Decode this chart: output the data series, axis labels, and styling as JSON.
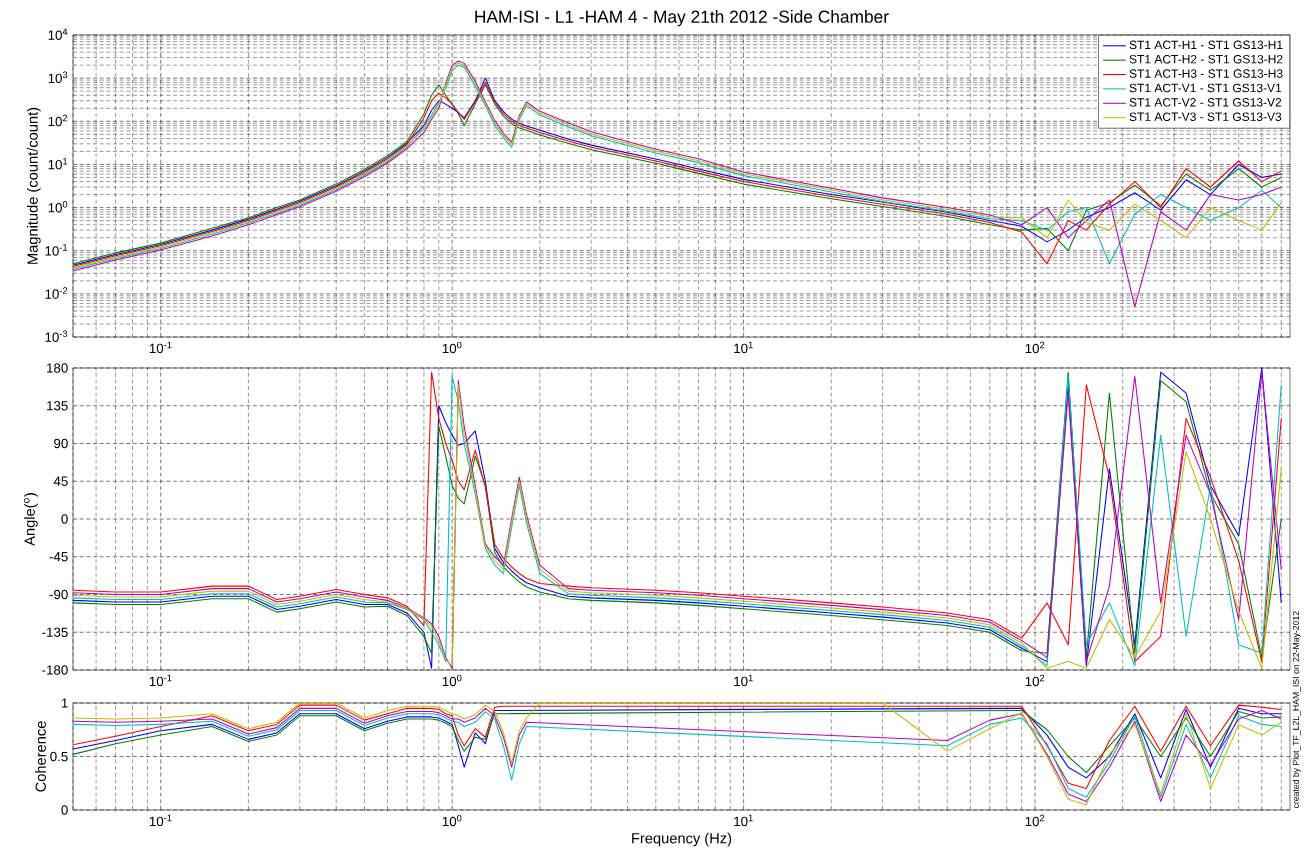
{
  "chart_data": [
    {
      "type": "line",
      "title": "HAM-ISI - L1 -HAM 4 - May 21th 2012 -Side Chamber",
      "ylabel": "Magnitude (count/count)",
      "log": "xy",
      "grid": true,
      "legend": "top right",
      "xlim": [
        0.05,
        750
      ],
      "xticks": [
        {
          "value": 0.1,
          "label": "10$^{-1}$"
        },
        {
          "value": 1,
          "label": "10$^{0}$"
        },
        {
          "value": 10,
          "label": "10$^{1}$"
        },
        {
          "value": 100,
          "label": "10$^{2}$"
        }
      ],
      "ylim": [
        0.001,
        10000
      ],
      "yticks": [
        {
          "value": 0.001,
          "label": "10$^{-3}$"
        },
        {
          "value": 0.01,
          "label": "10$^{-2}$"
        },
        {
          "value": 0.1,
          "label": "10$^{-1}$"
        },
        {
          "value": 1,
          "label": "10$^{0}$"
        },
        {
          "value": 10,
          "label": "10$^{1}$"
        },
        {
          "value": 100,
          "label": "10$^{2}$"
        },
        {
          "value": 1000,
          "label": "10$^{3}$"
        },
        {
          "value": 10000,
          "label": "10$^{4}$"
        }
      ],
      "x": [
        0.05,
        0.07,
        0.1,
        0.15,
        0.2,
        0.25,
        0.3,
        0.4,
        0.5,
        0.6,
        0.7,
        0.8,
        0.85,
        0.9,
        0.95,
        1.0,
        1.05,
        1.1,
        1.2,
        1.3,
        1.4,
        1.5,
        1.6,
        1.7,
        1.8,
        2,
        2.5,
        3,
        5,
        7,
        10,
        20,
        30,
        50,
        70,
        90,
        110,
        130,
        150,
        180,
        220,
        270,
        330,
        400,
        500,
        600,
        700
      ],
      "series": [
        {
          "name": "ST1 ACT-H1 - ST1 GS13-H1",
          "color": "#0000ff",
          "values": [
            0.046,
            0.082,
            0.14,
            0.3,
            0.54,
            0.92,
            1.4,
            3.2,
            7,
            14.6,
            31,
            80,
            180,
            300,
            250,
            200,
            160,
            120,
            300,
            1000,
            300,
            168,
            112,
            90,
            78,
            62,
            39,
            28,
            13.4,
            7.8,
            4.5,
            2,
            1.35,
            0.78,
            0.5,
            0.37,
            0.16,
            0.3,
            0.6,
            1,
            2.2,
            0.87,
            4.4,
            2,
            10,
            5,
            6
          ]
        },
        {
          "name": "ST1 ACT-H2 - ST1 GS13-H2",
          "color": "#008000",
          "values": [
            0.05,
            0.089,
            0.15,
            0.33,
            0.58,
            1,
            1.5,
            3.5,
            7.6,
            16,
            34,
            150,
            400,
            700,
            400,
            250,
            150,
            80,
            250,
            700,
            250,
            132,
            88,
            70,
            62,
            48,
            31,
            22,
            10.6,
            6.2,
            3.5,
            1.6,
            1.06,
            0.62,
            0.4,
            0.3,
            0.33,
            0.1,
            0.87,
            1.3,
            3.3,
            1.1,
            6,
            2.5,
            8,
            3,
            5
          ]
        },
        {
          "name": "ST1 ACT-H3 - ST1 GS13-H3",
          "color": "#ff0000",
          "values": [
            0.043,
            0.076,
            0.13,
            0.28,
            0.5,
            0.85,
            1.3,
            3,
            6.5,
            13.5,
            29,
            120,
            300,
            450,
            350,
            250,
            160,
            110,
            280,
            800,
            280,
            150,
            100,
            80,
            70,
            55,
            35,
            25,
            12,
            7,
            4,
            1.8,
            1.2,
            0.7,
            0.45,
            0.27,
            0.05,
            0.5,
            0.3,
            1.2,
            4,
            1,
            8,
            3,
            12,
            4,
            7
          ]
        },
        {
          "name": "ST1 ACT-V1 - ST1 GS13-V1",
          "color": "#00bfbf",
          "values": [
            0.037,
            0.066,
            0.113,
            0.24,
            0.44,
            0.74,
            1.13,
            2.6,
            5.7,
            11.7,
            25,
            75,
            140,
            270,
            600,
            1500,
            2000,
            1800,
            650,
            230,
            80,
            42,
            25,
            110,
            230,
            140,
            75,
            46,
            18.5,
            11,
            5.5,
            2.3,
            1.38,
            0.82,
            0.55,
            0.5,
            0.3,
            0.8,
            1,
            0.05,
            0.7,
            2,
            1,
            0.5,
            1,
            2.5,
            1
          ]
        },
        {
          "name": "ST1 ACT-V2 - ST1 GS13-V2",
          "color": "#bf00bf",
          "values": [
            0.034,
            0.061,
            0.104,
            0.22,
            0.4,
            0.68,
            1.04,
            2.4,
            5.2,
            10.8,
            23,
            55,
            110,
            200,
            750,
            2000,
            2500,
            2200,
            850,
            280,
            105,
            52,
            33,
            135,
            280,
            170,
            92,
            57,
            22.5,
            13.5,
            6.7,
            2.8,
            1.68,
            1,
            0.67,
            0.4,
            1,
            0.2,
            0.5,
            1.5,
            0.005,
            0.8,
            0.3,
            2,
            1.5,
            2,
            3
          ]
        },
        {
          "name": "ST1 ACT-V3 - ST1 GS13-V3",
          "color": "#bfbf00",
          "values": [
            0.04,
            0.071,
            0.122,
            0.26,
            0.47,
            0.8,
            1.22,
            2.8,
            6.1,
            12.7,
            27,
            65,
            125,
            235,
            670,
            1750,
            2250,
            2000,
            750,
            250,
            92,
            47,
            29,
            122,
            255,
            155,
            83,
            51,
            20.5,
            12.2,
            6.1,
            2.55,
            1.52,
            0.9,
            0.61,
            0.58,
            0.2,
            1.5,
            0.45,
            0.3,
            1.2,
            0.5,
            0.2,
            1,
            0.5,
            0.3,
            1.3
          ]
        }
      ]
    },
    {
      "type": "line",
      "ylabel": "Angle($^{o}$)",
      "log": "x",
      "grid": true,
      "xlim": [
        0.05,
        750
      ],
      "xticks": [
        {
          "value": 0.1,
          "label": "10$^{-1}$"
        },
        {
          "value": 1,
          "label": "10$^{0}$"
        },
        {
          "value": 10,
          "label": "10$^{1}$"
        },
        {
          "value": 100,
          "label": "10$^{2}$"
        }
      ],
      "ylim": [
        -180,
        180
      ],
      "yticks": [
        -180,
        -135,
        -90,
        -45,
        0,
        45,
        90,
        135,
        180
      ],
      "x": [
        0.05,
        0.07,
        0.1,
        0.15,
        0.2,
        0.25,
        0.3,
        0.4,
        0.5,
        0.6,
        0.7,
        0.8,
        0.85,
        0.9,
        0.95,
        1.0,
        1.05,
        1.1,
        1.2,
        1.3,
        1.4,
        1.5,
        1.6,
        1.7,
        1.8,
        2,
        2.5,
        3,
        5,
        7,
        10,
        20,
        30,
        50,
        70,
        90,
        110,
        130,
        150,
        180,
        220,
        270,
        330,
        400,
        500,
        600,
        700
      ],
      "series": [
        {
          "color": "#0000ff",
          "values": [
            -97,
            -99,
            -99,
            -92,
            -92,
            -108,
            -104,
            -96,
            -102,
            -102,
            -112,
            -135,
            -178,
            135,
            115,
            100,
            88,
            90,
            105,
            45,
            -35,
            -52,
            -62,
            -70,
            -76,
            -82,
            -92,
            -94,
            -97,
            -100,
            -104,
            -112,
            -117,
            -124,
            -132,
            -154,
            -170,
            160,
            -175,
            60,
            -150,
            175,
            150,
            40,
            -20,
            180,
            -100
          ]
        },
        {
          "color": "#008000",
          "values": [
            -100,
            -102,
            -102,
            -95,
            -95,
            -111,
            -107,
            -99,
            -105,
            -104,
            -115,
            -140,
            -160,
            110,
            75,
            40,
            25,
            18,
            75,
            40,
            -40,
            -57,
            -67,
            -75,
            -81,
            -87,
            -95,
            -97,
            -100,
            -103,
            -107,
            -115,
            -120,
            -127,
            -135,
            -157,
            -160,
            175,
            -165,
            150,
            -160,
            165,
            140,
            30,
            -30,
            -165,
            0
          ]
        },
        {
          "color": "#ff0000",
          "values": [
            -85,
            -87,
            -87,
            -80,
            -80,
            -96,
            -92,
            -84,
            -90,
            -94,
            -104,
            -127,
            175,
            120,
            90,
            70,
            45,
            35,
            82,
            38,
            -30,
            -47,
            -57,
            -65,
            -71,
            -77,
            -80,
            -82,
            -85,
            -88,
            -92,
            -100,
            -105,
            -112,
            -120,
            -142,
            -100,
            -150,
            160,
            50,
            -170,
            -140,
            120,
            50,
            -50,
            -170,
            120
          ]
        },
        {
          "color": "#00bfbf",
          "values": [
            -94,
            -96,
            -96,
            -89,
            -89,
            -105,
            -101,
            -93,
            -99,
            -100,
            -108,
            -120,
            -135,
            -150,
            -170,
            170,
            140,
            90,
            30,
            -35,
            -55,
            -65,
            -10,
            40,
            -5,
            -65,
            -89,
            -91,
            -94,
            -97,
            -101,
            -109,
            -114,
            -121,
            -129,
            -151,
            -175,
            170,
            -150,
            -100,
            -175,
            100,
            -140,
            40,
            -150,
            -160,
            160
          ]
        },
        {
          "color": "#bf00bf",
          "values": [
            -88,
            -90,
            -90,
            -83,
            -83,
            -99,
            -95,
            -87,
            -93,
            -97,
            -106,
            -118,
            -125,
            -140,
            -165,
            -178,
            165,
            110,
            40,
            -30,
            -45,
            -55,
            0,
            50,
            5,
            -55,
            -83,
            -85,
            -88,
            -91,
            -95,
            -103,
            -108,
            -115,
            -123,
            -145,
            -165,
            150,
            -170,
            -80,
            170,
            -100,
            100,
            30,
            -120,
            175,
            -60
          ]
        },
        {
          "color": "#bfbf00",
          "values": [
            -91,
            -93,
            -93,
            -86,
            -86,
            -102,
            -98,
            -90,
            -96,
            -99,
            -107,
            -119,
            -128,
            -145,
            -168,
            -175,
            160,
            100,
            35,
            -32,
            -50,
            -60,
            -5,
            45,
            0,
            -60,
            -86,
            -88,
            -91,
            -94,
            -98,
            -106,
            -111,
            -118,
            -126,
            -148,
            -178,
            -170,
            -178,
            -120,
            -165,
            -110,
            80,
            0,
            -110,
            -178,
            60
          ]
        }
      ]
    },
    {
      "type": "line",
      "xlabel": "Frequency (Hz)",
      "ylabel": "Coherence",
      "log": "x",
      "grid": true,
      "annotations": [
        "created by Plot_TF_L2L_HAM_ISI on 22-May-2012"
      ],
      "xlim": [
        0.05,
        750
      ],
      "xticks": [
        {
          "value": 0.1,
          "label": "10$^{-1}$"
        },
        {
          "value": 1,
          "label": "10$^{0}$"
        },
        {
          "value": 10,
          "label": "10$^{1}$"
        },
        {
          "value": 100,
          "label": "10$^{2}$"
        }
      ],
      "ylim": [
        0,
        1
      ],
      "yticks": [
        0,
        0.5,
        1
      ],
      "x": [
        0.05,
        0.07,
        0.1,
        0.15,
        0.2,
        0.25,
        0.3,
        0.4,
        0.5,
        0.6,
        0.7,
        0.8,
        0.85,
        0.9,
        0.95,
        1.0,
        1.05,
        1.1,
        1.2,
        1.3,
        1.4,
        1.5,
        1.6,
        1.7,
        1.8,
        2,
        2.5,
        3,
        5,
        7,
        10,
        20,
        30,
        50,
        70,
        90,
        110,
        130,
        150,
        180,
        220,
        270,
        330,
        400,
        500,
        600,
        700
      ],
      "series": [
        {
          "color": "#0000ff",
          "values": [
            0.57,
            0.65,
            0.74,
            0.8,
            0.66,
            0.72,
            0.9,
            0.9,
            0.76,
            0.83,
            0.87,
            0.87,
            0.87,
            0.86,
            0.83,
            0.8,
            0.6,
            0.4,
            0.72,
            0.62,
            0.93,
            null,
            null,
            null,
            null,
            null,
            null,
            null,
            null,
            null,
            null,
            null,
            null,
            null,
            null,
            0.95,
            0.7,
            0.4,
            0.3,
            0.5,
            0.9,
            0.3,
            0.94,
            0.4,
            0.95,
            0.9,
            0.9
          ]
        },
        {
          "color": "#008000",
          "values": [
            0.52,
            0.62,
            0.7,
            0.78,
            0.64,
            0.7,
            0.88,
            0.88,
            0.74,
            0.81,
            0.85,
            0.85,
            0.85,
            0.84,
            0.81,
            0.78,
            0.65,
            0.55,
            0.68,
            0.66,
            0.9,
            null,
            null,
            null,
            null,
            null,
            null,
            null,
            null,
            null,
            null,
            null,
            null,
            null,
            null,
            0.93,
            0.75,
            0.5,
            0.35,
            0.6,
            0.86,
            0.5,
            0.86,
            0.5,
            0.92,
            0.86,
            0.87
          ]
        },
        {
          "color": "#ff0000",
          "values": [
            0.61,
            0.69,
            0.78,
            0.88,
            0.74,
            0.8,
            0.98,
            0.98,
            0.84,
            0.9,
            0.95,
            0.95,
            0.95,
            0.94,
            0.9,
            0.88,
            0.7,
            0.6,
            0.76,
            0.68,
            0.96,
            0.97,
            0.97,
            0.97,
            0.97,
            null,
            null,
            null,
            null,
            null,
            null,
            null,
            null,
            null,
            null,
            0.97,
            0.6,
            0.25,
            0.2,
            0.65,
            0.97,
            0.55,
            0.97,
            0.6,
            0.98,
            0.96,
            0.94
          ]
        },
        {
          "color": "#00bfbf",
          "values": [
            0.8,
            0.79,
            0.8,
            0.83,
            0.69,
            0.75,
            0.93,
            0.93,
            0.79,
            0.86,
            0.9,
            0.9,
            0.9,
            0.89,
            0.86,
            0.83,
            0.82,
            0.78,
            0.82,
            0.92,
            0.85,
            0.6,
            0.28,
            0.62,
            0.78,
            null,
            null,
            null,
            null,
            null,
            null,
            null,
            null,
            0.6,
            0.8,
            0.86,
            0.62,
            0.2,
            0.12,
            0.45,
            0.88,
            0.12,
            0.8,
            0.3,
            0.88,
            0.8,
            0.78
          ]
        },
        {
          "color": "#bf00bf",
          "values": [
            0.83,
            0.82,
            0.83,
            0.85,
            0.71,
            0.77,
            0.95,
            0.95,
            0.81,
            0.88,
            0.92,
            0.92,
            0.92,
            0.91,
            0.88,
            0.85,
            0.85,
            0.82,
            0.86,
            0.95,
            0.88,
            0.68,
            0.4,
            0.7,
            0.82,
            null,
            null,
            null,
            null,
            null,
            null,
            null,
            null,
            0.65,
            0.84,
            0.9,
            0.52,
            0.15,
            0.08,
            0.4,
            0.83,
            0.08,
            0.7,
            0.42,
            0.85,
            0.93,
            0.85
          ]
        },
        {
          "color": "#bfbf00",
          "values": [
            0.86,
            0.85,
            0.86,
            0.9,
            0.76,
            0.82,
            1,
            1,
            0.86,
            0.93,
            0.97,
            0.97,
            0.97,
            0.96,
            0.93,
            0.9,
            0.88,
            0.85,
            0.89,
            0.98,
            0.92,
            0.72,
            0.44,
            0.74,
            0.86,
            1,
            1,
            1,
            1,
            1,
            1,
            1,
            1,
            0.55,
            0.76,
            0.91,
            0.5,
            0.1,
            0.05,
            0.52,
            0.8,
            0.15,
            0.9,
            0.2,
            0.8,
            0.7,
            0.82
          ]
        }
      ]
    }
  ]
}
